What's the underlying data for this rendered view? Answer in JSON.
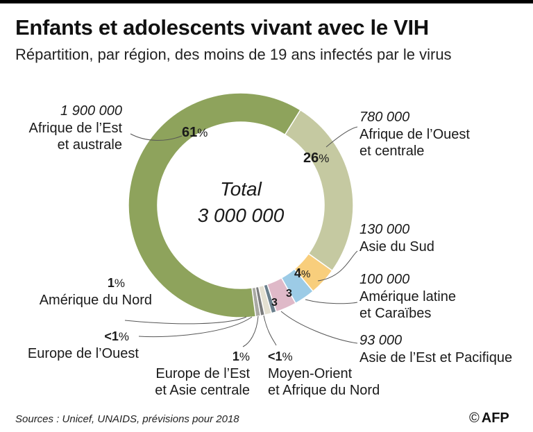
{
  "title": "Enfants et adolescents vivant avec le VIH",
  "subtitle": "Répartition, par région, des moins de 19 ans infectés par le virus",
  "source": "Sources : Unicef, UNAIDS, prévisions pour 2018",
  "credit": {
    "symbol": "©",
    "name": "AFP"
  },
  "chart_data": {
    "type": "pie",
    "donut": true,
    "center_label": [
      "Total",
      "3 000 000"
    ],
    "slices": [
      {
        "region": "Afrique de l’Ouest et centrale",
        "region_lines": [
          "Afrique de l’Ouest",
          "et centrale"
        ],
        "value_label": "780 000",
        "pct_label": "26",
        "share": 26,
        "color": "#c5c9a1"
      },
      {
        "region": "Asie du Sud",
        "region_lines": [
          "Asie du Sud"
        ],
        "value_label": "130 000",
        "pct_label": "4",
        "share": 4,
        "color": "#f8ce7c"
      },
      {
        "region": "Amérique latine et Caraïbes",
        "region_lines": [
          "Amérique latine",
          "et Caraïbes"
        ],
        "value_label": "100 000",
        "pct_label": "3",
        "share": 3,
        "color": "#9ccbe6"
      },
      {
        "region": "Asie de l’Est et Pacifique",
        "region_lines": [
          "Asie de l’Est et Pacifique"
        ],
        "value_label": "93 000",
        "pct_label": "3",
        "share": 3,
        "color": "#dfb9c8"
      },
      {
        "region": "Moyen-Orient et Afrique du Nord",
        "region_lines": [
          "Moyen-Orient",
          "et Afrique du Nord"
        ],
        "value_label": "",
        "pct_label": "<1",
        "share": 0.7,
        "color": "#6a7f8c"
      },
      {
        "region": "Europe de l’Est et Asie centrale",
        "region_lines": [
          "Europe de l’Est",
          "et Asie centrale"
        ],
        "value_label": "",
        "pct_label": "1",
        "share": 1,
        "color": "#e4e0d1"
      },
      {
        "region": "Europe de l’Ouest",
        "region_lines": [
          "Europe de l’Ouest"
        ],
        "value_label": "",
        "pct_label": "<1",
        "share": 0.6,
        "color": "#7c7d7d"
      },
      {
        "region": "Amérique du Nord",
        "region_lines": [
          "Amérique du Nord"
        ],
        "value_label": "",
        "pct_label": "1",
        "share": 0.7,
        "color": "#a9a9a3"
      },
      {
        "region": "Afrique de l’Est et australe",
        "region_lines": [
          "Afrique de l’Est",
          "et australe"
        ],
        "value_label": "1 900 000",
        "pct_label": "61",
        "share": 61,
        "color": "#8ea35c"
      }
    ]
  }
}
